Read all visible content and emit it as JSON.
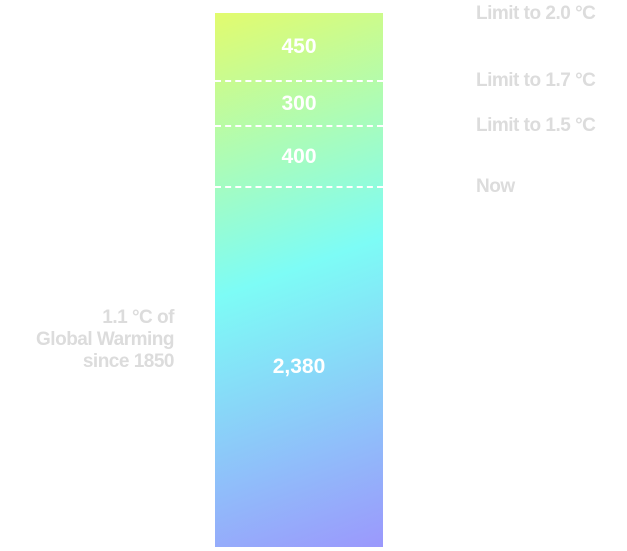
{
  "colors": {
    "gradient_top_left": "#e2fb6e",
    "gradient_middle": "#7dfcf6",
    "gradient_bottom_right": "#9b98fc",
    "divider": "#ffffff",
    "segment_label": "#ffffff",
    "side_label": "#dcdcdc"
  },
  "chart_data": {
    "type": "bar",
    "stacked": true,
    "orientation": "vertical",
    "segments": [
      {
        "value": 2380,
        "label": "2,380"
      },
      {
        "value": 400,
        "label": "400"
      },
      {
        "value": 300,
        "label": "300"
      },
      {
        "value": 450,
        "label": "450"
      }
    ],
    "thresholds": [
      {
        "label": "Now",
        "cumulative": 2380
      },
      {
        "label": "Limit to 1.5 °C",
        "cumulative": 2780
      },
      {
        "label": "Limit to 1.7 °C",
        "cumulative": 3080
      },
      {
        "label": "Limit to 2.0 °C",
        "cumulative": 3530
      }
    ],
    "annotation": {
      "lines": [
        "1.1 °C of",
        "Global Warming",
        "since 1850"
      ]
    }
  }
}
